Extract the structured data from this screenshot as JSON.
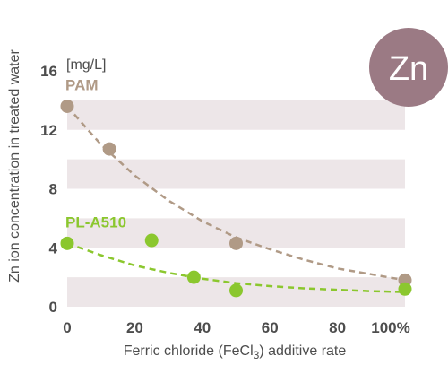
{
  "chart_data": {
    "type": "scatter",
    "title": "",
    "xlabel": "Ferric chloride (FeCl3) additive rate",
    "xlabel_parts": {
      "before": "Ferric chloride (FeCl",
      "sub": "3",
      "after": ") additive rate"
    },
    "ylabel": "Zn ion concentration in treated water",
    "y_unit": "[mg/L]",
    "badge": "Zn",
    "xlim": [
      0,
      100
    ],
    "ylim": [
      0,
      16
    ],
    "x_ticks": [
      "0",
      "20",
      "40",
      "60",
      "80",
      "100%"
    ],
    "y_ticks": [
      "0",
      "4",
      "8",
      "12",
      "16"
    ],
    "bands": [
      [
        0,
        2
      ],
      [
        4,
        6
      ],
      [
        8,
        10
      ],
      [
        12,
        14
      ]
    ],
    "legend_placement": "inline",
    "series": [
      {
        "name": "PAM",
        "color": "#b09a86",
        "points": [
          [
            0,
            13.6
          ],
          [
            12.5,
            10.7
          ],
          [
            50,
            4.3
          ],
          [
            100,
            1.8
          ]
        ],
        "trend": [
          [
            0,
            13.6
          ],
          [
            10,
            11.0
          ],
          [
            20,
            8.9
          ],
          [
            30,
            7.2
          ],
          [
            40,
            5.8
          ],
          [
            50,
            4.7
          ],
          [
            60,
            3.9
          ],
          [
            70,
            3.2
          ],
          [
            80,
            2.6
          ],
          [
            90,
            2.2
          ],
          [
            100,
            1.8
          ]
        ]
      },
      {
        "name": "PL-A510",
        "color": "#8bc72e",
        "points": [
          [
            0,
            4.3
          ],
          [
            25,
            4.5
          ],
          [
            37.5,
            2.0
          ],
          [
            50,
            1.1
          ],
          [
            100,
            1.2
          ]
        ],
        "trend": [
          [
            0,
            4.3
          ],
          [
            10,
            3.5
          ],
          [
            20,
            2.8
          ],
          [
            30,
            2.3
          ],
          [
            40,
            1.9
          ],
          [
            50,
            1.6
          ],
          [
            60,
            1.4
          ],
          [
            70,
            1.25
          ],
          [
            80,
            1.15
          ],
          [
            90,
            1.05
          ],
          [
            100,
            1.0
          ]
        ]
      }
    ]
  },
  "colors": {
    "band": "#ede6e8",
    "badge": "#9b7a84",
    "text": "#4d4d4d"
  }
}
